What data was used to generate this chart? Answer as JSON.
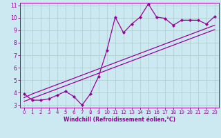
{
  "xlabel": "Windchill (Refroidissement éolien,°C)",
  "bg_color": "#cce8f0",
  "line_color": "#990099",
  "grid_color": "#aacccc",
  "x_data": [
    0,
    1,
    2,
    3,
    4,
    5,
    6,
    7,
    8,
    9,
    10,
    11,
    12,
    13,
    14,
    15,
    16,
    17,
    18,
    19,
    20,
    21,
    22,
    23
  ],
  "y_scatter": [
    3.9,
    3.4,
    3.4,
    3.5,
    3.8,
    4.1,
    3.7,
    3.0,
    3.9,
    5.3,
    7.4,
    10.05,
    8.8,
    9.5,
    10.05,
    11.1,
    10.05,
    9.95,
    9.4,
    9.8,
    9.8,
    9.8,
    9.5,
    10.1
  ],
  "y_line1": [
    3.6,
    3.9,
    4.15,
    4.4,
    4.65,
    4.9,
    5.15,
    5.4,
    5.65,
    5.9,
    6.15,
    6.4,
    6.65,
    6.9,
    7.15,
    7.4,
    7.65,
    7.9,
    8.15,
    8.4,
    8.65,
    8.9,
    9.15,
    9.4
  ],
  "y_line2": [
    3.3,
    3.55,
    3.8,
    4.05,
    4.3,
    4.55,
    4.8,
    5.05,
    5.3,
    5.55,
    5.8,
    6.05,
    6.3,
    6.55,
    6.8,
    7.05,
    7.3,
    7.55,
    7.8,
    8.05,
    8.3,
    8.55,
    8.8,
    9.05
  ],
  "ylim": [
    2.8,
    11.2
  ],
  "xlim": [
    -0.5,
    23.5
  ],
  "yticks": [
    3,
    4,
    5,
    6,
    7,
    8,
    9,
    10,
    11
  ],
  "xticks": [
    0,
    1,
    2,
    3,
    4,
    5,
    6,
    7,
    8,
    9,
    10,
    11,
    12,
    13,
    14,
    15,
    16,
    17,
    18,
    19,
    20,
    21,
    22,
    23
  ]
}
